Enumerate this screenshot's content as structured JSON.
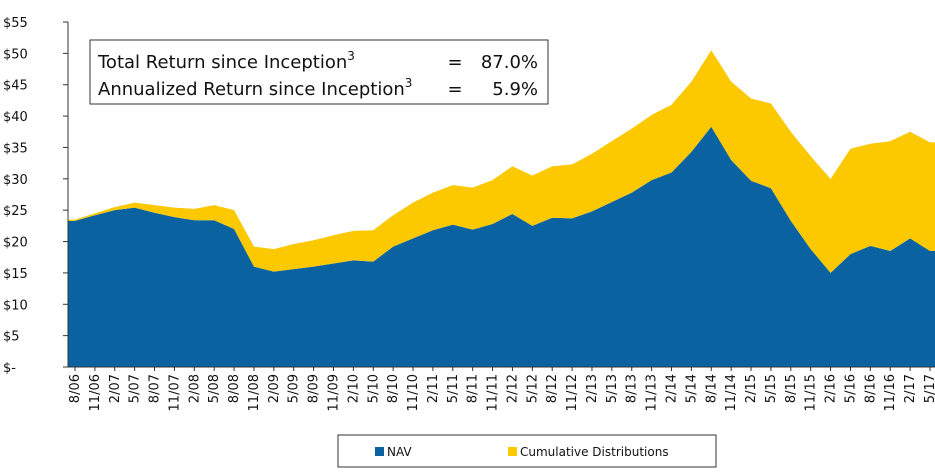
{
  "chart_data": {
    "type": "stacked-area",
    "categories": [
      "8/06",
      "11/06",
      "2/07",
      "5/07",
      "8/07",
      "11/07",
      "2/08",
      "5/08",
      "8/08",
      "11/08",
      "2/09",
      "5/09",
      "8/09",
      "11/09",
      "2/10",
      "5/10",
      "8/10",
      "11/10",
      "2/11",
      "5/11",
      "8/11",
      "11/11",
      "2/12",
      "5/12",
      "8/12",
      "11/12",
      "2/13",
      "5/13",
      "8/13",
      "11/13",
      "2/14",
      "5/14",
      "8/14",
      "11/14",
      "2/15",
      "5/15",
      "8/15",
      "11/15",
      "2/16",
      "5/16",
      "8/16",
      "11/16",
      "2/17",
      "5/17"
    ],
    "series": [
      {
        "name": "NAV",
        "color": "#0b62a0",
        "values": [
          23.3,
          24.2,
          25,
          25.4,
          24.6,
          23.9,
          23.4,
          23.4,
          22,
          16,
          15.2,
          15.6,
          16,
          16.5,
          17,
          16.8,
          19.2,
          20.5,
          21.8,
          22.7,
          21.9,
          22.8,
          24.4,
          22.5,
          23.8,
          23.7,
          24.8,
          26.3,
          27.8,
          29.8,
          31,
          34.3,
          38.3,
          33,
          29.7,
          28.5,
          23.3,
          18.8,
          15,
          18,
          19.3,
          18.5,
          20.5,
          18.5
        ]
      },
      {
        "name": "Cumulative Distributions",
        "color": "#fcc800",
        "values": [
          0.2,
          0.3,
          0.5,
          0.8,
          1.2,
          1.5,
          1.8,
          2.4,
          3.0,
          3.2,
          3.6,
          4.0,
          4.2,
          4.5,
          4.7,
          5.0,
          5.0,
          5.7,
          6.0,
          6.3,
          6.7,
          7.0,
          7.6,
          8.0,
          8.2,
          8.6,
          9.2,
          9.7,
          10.2,
          10.4,
          10.8,
          11.2,
          12.2,
          12.5,
          13.1,
          13.5,
          14.2,
          14.8,
          15.0,
          16.8,
          16.3,
          17.5,
          17.0,
          17.3
        ]
      }
    ],
    "ylim": [
      0,
      55
    ],
    "yticks": [
      {
        "value": 0,
        "label": "$-"
      },
      {
        "value": 5,
        "label": "$5"
      },
      {
        "value": 10,
        "label": "$10"
      },
      {
        "value": 15,
        "label": "$15"
      },
      {
        "value": 20,
        "label": "$20"
      },
      {
        "value": 25,
        "label": "$25"
      },
      {
        "value": 30,
        "label": "$30"
      },
      {
        "value": 35,
        "label": "$35"
      },
      {
        "value": 40,
        "label": "$40"
      },
      {
        "value": 45,
        "label": "$45"
      },
      {
        "value": 50,
        "label": "$50"
      },
      {
        "value": 55,
        "label": "$55"
      }
    ],
    "grid": false,
    "legend": "bottom",
    "annotations": [
      {
        "label": "Total Return since Inception",
        "superscript": "3",
        "operator": "=",
        "value": "87.0%"
      },
      {
        "label": "Annualized Return since Inception",
        "superscript": "3",
        "operator": "=",
        "value": "5.9%"
      }
    ]
  }
}
